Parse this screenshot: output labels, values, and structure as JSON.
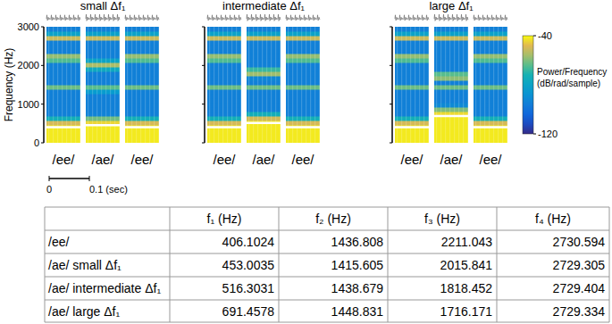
{
  "chart_data": {
    "type": "spectrogram",
    "panels": [
      {
        "title": "small Δf₁",
        "vowels": [
          "/ee/",
          "/ae/",
          "/ee/"
        ]
      },
      {
        "title": "intermediate Δf₁",
        "vowels": [
          "/ee/",
          "/ae/",
          "/ee/"
        ]
      },
      {
        "title": "large Δf₁",
        "vowels": [
          "/ee/",
          "/ae/",
          "/ee/"
        ]
      }
    ],
    "y_label": "Frequency (Hz)",
    "ylim": [
      0,
      3000
    ],
    "yticks": [
      0,
      1000,
      2000,
      3000
    ],
    "colorbar": {
      "label": "Power/Frequency (dB/rad/sample)",
      "range": [
        -120,
        -40
      ],
      "ticks": [
        -120,
        -40
      ]
    },
    "time_scale": {
      "ticks": [
        0,
        {
          "value": 0.1,
          "label": "0.1 (sec)"
        }
      ]
    },
    "table": {
      "header": [
        "f₁ (Hz)",
        "f₂ (Hz)",
        "f₃ (Hz)",
        "f₄ (Hz)"
      ],
      "rows": [
        [
          "/ee/",
          406.1024,
          1436.808,
          2211.043,
          2730.594
        ],
        [
          "/ae/ small Δf₁",
          453.0035,
          1415.605,
          2015.841,
          2729.305
        ],
        [
          "/ae/ intermediate Δf₁",
          516.3031,
          1438.679,
          1818.452,
          2729.404
        ],
        [
          "/ae/ large Δf₁",
          691.4578,
          1448.831,
          1716.171,
          2729.334
        ]
      ]
    }
  }
}
